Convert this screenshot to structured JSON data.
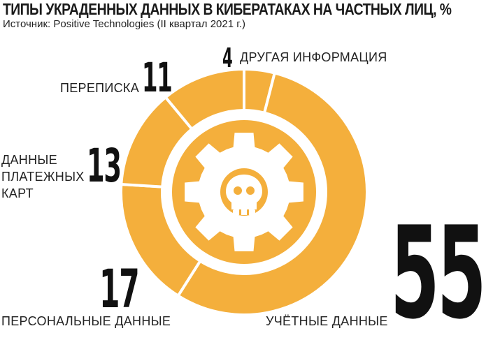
{
  "header": {
    "title": "ТИПЫ УКРАДЕННЫХ ДАННЫХ В КИБЕРАТАКАХ НА ЧАСТНЫХ ЛИЦ, %",
    "source": "Источник:  Positive Technologies (II квартал 2021 г.)"
  },
  "colors": {
    "accent": "#F4AF3C",
    "divider": "#FFFFFF",
    "text": "#1A1A1A"
  },
  "center_icon": "skull-in-gear-icon",
  "chart_data": {
    "type": "pie",
    "variant": "donut",
    "title": "ТИПЫ УКРАДЕННЫХ ДАННЫХ В КИБЕРАТАКАХ НА ЧАСТНЫХ ЛИЦ, %",
    "unit": "%",
    "order": "clockwise from top",
    "slices": [
      {
        "label": "ДРУГАЯ ИНФОРМАЦИЯ",
        "value": 4,
        "display": "4"
      },
      {
        "label": "УЧЁТНЫЕ ДАННЫЕ",
        "value": 55,
        "display": "55"
      },
      {
        "label": "ПЕРСОНАЛЬНЫЕ ДАННЫЕ",
        "value": 17,
        "display": "17"
      },
      {
        "label": "ДАННЫЕ\nПЛАТЕЖНЫХ\nКАРТ",
        "value": 13,
        "display": "13"
      },
      {
        "label": "ПЕРЕПИСКА",
        "value": 11,
        "display": "11"
      }
    ]
  }
}
